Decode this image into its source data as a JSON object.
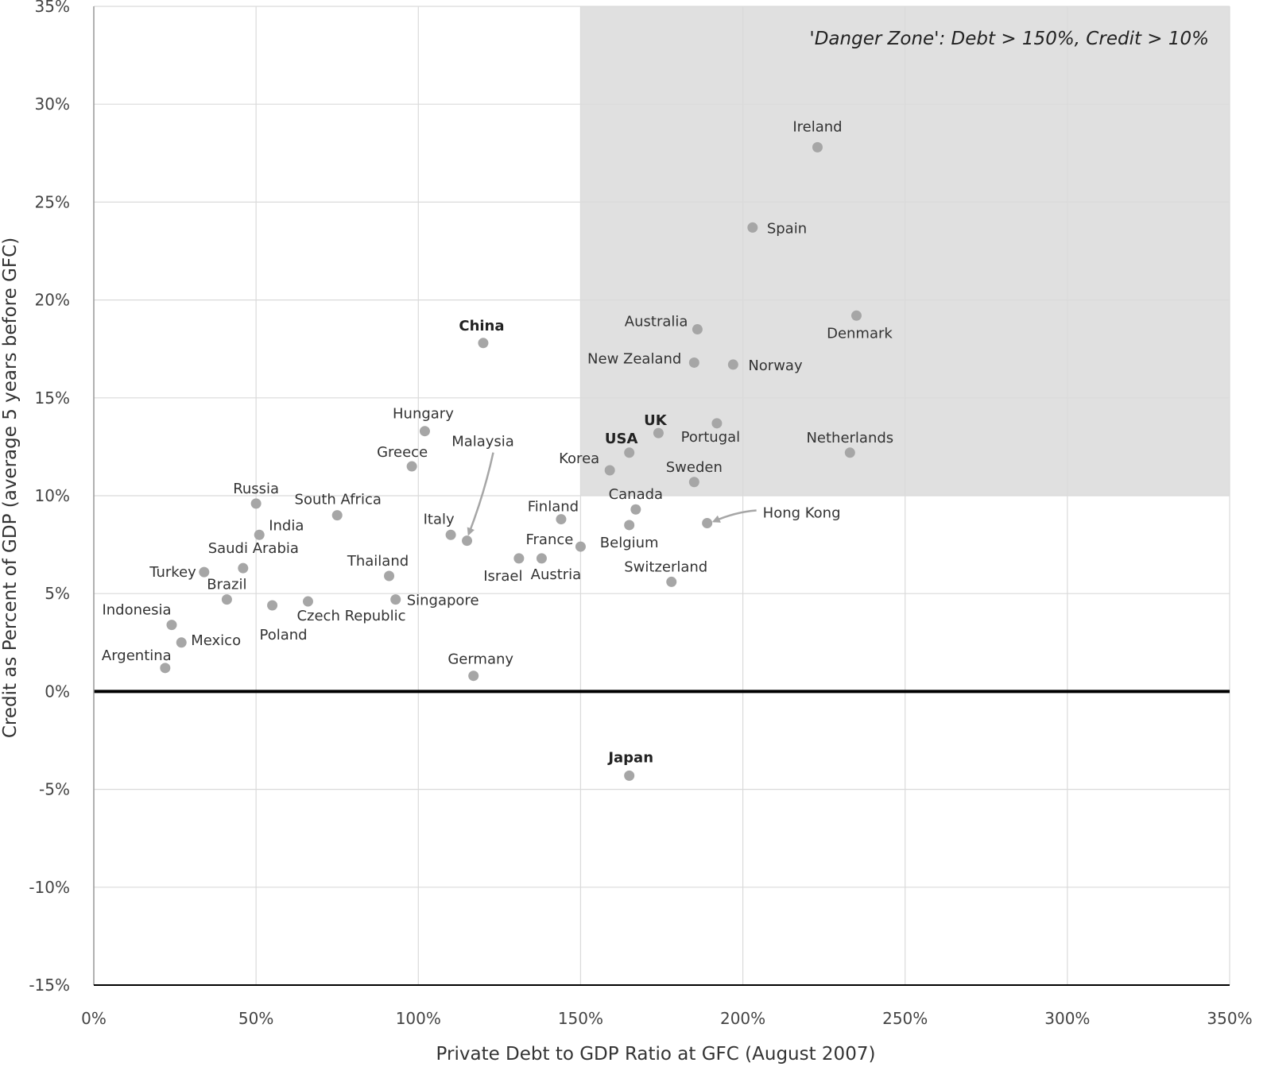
{
  "chart_data": {
    "type": "scatter",
    "title": "",
    "xlabel": "Private Debt to GDP Ratio at GFC (August 2007)",
    "ylabel": "Credit as Percent of GDP (average 5 years before GFC)",
    "xlim": [
      0,
      350
    ],
    "ylim": [
      -15,
      35
    ],
    "x_ticks": [
      "0%",
      "50%",
      "100%",
      "150%",
      "200%",
      "250%",
      "300%",
      "350%"
    ],
    "y_ticks": [
      "35%",
      "30%",
      "25%",
      "20%",
      "15%",
      "10%",
      "5%",
      "0%",
      "-5%",
      "-10%",
      "-15%"
    ],
    "grid": true,
    "zone": {
      "label": "'Danger Zone': Debt > 150%, Credit > 10%",
      "x_min": 150,
      "y_min": 10,
      "color": "#e0e0e0"
    },
    "marker_color": "#a6a6a6",
    "points": [
      {
        "label": "Ireland",
        "x": 223,
        "y": 27.8
      },
      {
        "label": "Spain",
        "x": 203,
        "y": 23.7
      },
      {
        "label": "Denmark",
        "x": 235,
        "y": 19.2
      },
      {
        "label": "Australia",
        "x": 186,
        "y": 18.5
      },
      {
        "label": "China",
        "x": 120,
        "y": 17.8,
        "bold": true
      },
      {
        "label": "New Zealand",
        "x": 185,
        "y": 16.8
      },
      {
        "label": "Norway",
        "x": 197,
        "y": 16.7
      },
      {
        "label": "Portugal",
        "x": 192,
        "y": 13.7
      },
      {
        "label": "Hungary",
        "x": 102,
        "y": 13.3
      },
      {
        "label": "UK",
        "x": 174,
        "y": 13.2,
        "bold": true
      },
      {
        "label": "USA",
        "x": 165,
        "y": 12.2,
        "bold": true
      },
      {
        "label": "Netherlands",
        "x": 233,
        "y": 12.2
      },
      {
        "label": "Greece",
        "x": 98,
        "y": 11.5
      },
      {
        "label": "Korea",
        "x": 159,
        "y": 11.3
      },
      {
        "label": "Sweden",
        "x": 185,
        "y": 10.7
      },
      {
        "label": "Russia",
        "x": 50,
        "y": 9.6
      },
      {
        "label": "Canada",
        "x": 167,
        "y": 9.3
      },
      {
        "label": "South Africa",
        "x": 75,
        "y": 9.0
      },
      {
        "label": "Finland",
        "x": 144,
        "y": 8.8
      },
      {
        "label": "Hong Kong",
        "x": 189,
        "y": 8.6
      },
      {
        "label": "Belgium",
        "x": 165,
        "y": 8.5
      },
      {
        "label": "India",
        "x": 51,
        "y": 8.0
      },
      {
        "label": "Italy",
        "x": 110,
        "y": 8.0
      },
      {
        "label": "Malaysia",
        "x": 115,
        "y": 7.7
      },
      {
        "label": "France",
        "x": 150,
        "y": 7.4
      },
      {
        "label": "Israel",
        "x": 131,
        "y": 6.8
      },
      {
        "label": "Austria",
        "x": 138,
        "y": 6.8
      },
      {
        "label": "Saudi Arabia",
        "x": 46,
        "y": 6.3
      },
      {
        "label": "Turkey",
        "x": 34,
        "y": 6.1
      },
      {
        "label": "Thailand",
        "x": 91,
        "y": 5.9
      },
      {
        "label": "Switzerland",
        "x": 178,
        "y": 5.6
      },
      {
        "label": "Brazil",
        "x": 41,
        "y": 4.7
      },
      {
        "label": "Czech Republic",
        "x": 66,
        "y": 4.6
      },
      {
        "label": "Singapore",
        "x": 93,
        "y": 4.7
      },
      {
        "label": "Poland",
        "x": 55,
        "y": 4.4
      },
      {
        "label": "Indonesia",
        "x": 24,
        "y": 3.4
      },
      {
        "label": "Mexico",
        "x": 27,
        "y": 2.5
      },
      {
        "label": "Argentina",
        "x": 22,
        "y": 1.2
      },
      {
        "label": "Germany",
        "x": 117,
        "y": 0.8
      },
      {
        "label": "Japan",
        "x": 165,
        "y": -4.3,
        "bold": true
      }
    ]
  }
}
